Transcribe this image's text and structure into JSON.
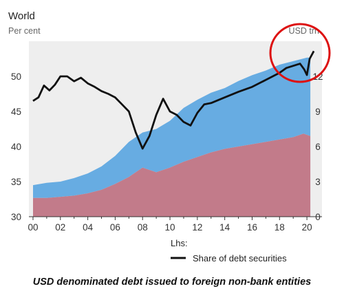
{
  "chart_data": {
    "type": "area",
    "title": "World",
    "left_unit": "Per cent",
    "right_unit": "USD trn",
    "caption": "USD denominated debt issued to foreign non-bank entities",
    "x_tick_labels": [
      "00",
      "02",
      "04",
      "06",
      "08",
      "10",
      "12",
      "14",
      "16",
      "18",
      "20"
    ],
    "x_tick_years": [
      2000,
      2002,
      2004,
      2006,
      2008,
      2010,
      2012,
      2014,
      2016,
      2018,
      2020
    ],
    "x_range": [
      1999.7,
      2021.1
    ],
    "left_axis": {
      "ticks": [
        30,
        35,
        40,
        45,
        50
      ],
      "range": [
        30,
        55
      ]
    },
    "right_axis": {
      "ticks": [
        0,
        3,
        6,
        9,
        12
      ],
      "range": [
        0,
        15
      ]
    },
    "legend": {
      "header": "Lhs:",
      "entries": [
        "Share of debt securities"
      ]
    },
    "plot_background": "#eeeeee",
    "colors": {
      "lower_area": "#c27b8a",
      "upper_area": "#67ace2",
      "line": "#111111",
      "highlight_circle": "#dd1111"
    },
    "highlight": "red circle around the latest data (2019–2020) near the top-right corner",
    "series": [
      {
        "axis": "right",
        "x": [
          2000,
          2001,
          2002,
          2003,
          2004,
          2005,
          2006,
          2007,
          2008,
          2009,
          2010,
          2011,
          2012,
          2013,
          2014,
          2015,
          2016,
          2017,
          2018,
          2019,
          2019.75,
          2020.25
        ],
        "values": [
          1.6,
          1.6,
          1.7,
          1.8,
          2.0,
          2.3,
          2.8,
          3.4,
          4.2,
          3.8,
          4.2,
          4.7,
          5.1,
          5.5,
          5.8,
          6.0,
          6.2,
          6.4,
          6.6,
          6.8,
          7.1,
          6.9
        ]
      },
      {
        "axis": "right",
        "x": [
          2000,
          2001,
          2002,
          2003,
          2004,
          2005,
          2006,
          2007,
          2008,
          2009,
          2010,
          2011,
          2012,
          2013,
          2014,
          2015,
          2016,
          2017,
          2018,
          2019,
          2020,
          2020.25
        ],
        "values": [
          2.7,
          2.9,
          3.0,
          3.3,
          3.7,
          4.3,
          5.2,
          6.4,
          7.2,
          7.5,
          8.2,
          9.3,
          10.0,
          10.6,
          11.0,
          11.6,
          12.1,
          12.5,
          13.0,
          13.3,
          13.6,
          13.6
        ]
      },
      {
        "name": "Share of debt securities",
        "axis": "left",
        "x": [
          2000,
          2000.4,
          2000.8,
          2001.2,
          2001.6,
          2002,
          2002.5,
          2003,
          2003.5,
          2004,
          2004.5,
          2005,
          2005.5,
          2006,
          2006.5,
          2007,
          2007.5,
          2008,
          2008.5,
          2009,
          2009.5,
          2010,
          2010.5,
          2011,
          2011.5,
          2012,
          2012.5,
          2013,
          2014,
          2015,
          2016,
          2017,
          2018,
          2018.5,
          2019,
          2019.5,
          2019.8,
          2020,
          2020.2,
          2020.5
        ],
        "values": [
          46.5,
          47.0,
          48.7,
          48.0,
          48.8,
          50.0,
          50.0,
          49.3,
          49.8,
          49.0,
          48.5,
          47.9,
          47.5,
          47.0,
          46.0,
          45.0,
          42.0,
          39.7,
          41.5,
          44.5,
          46.8,
          45.0,
          44.5,
          43.5,
          43.0,
          44.8,
          46.0,
          46.2,
          47.0,
          47.8,
          48.5,
          49.5,
          50.5,
          51.2,
          51.5,
          51.8,
          51.0,
          50.2,
          52.5,
          53.6
        ]
      }
    ]
  }
}
